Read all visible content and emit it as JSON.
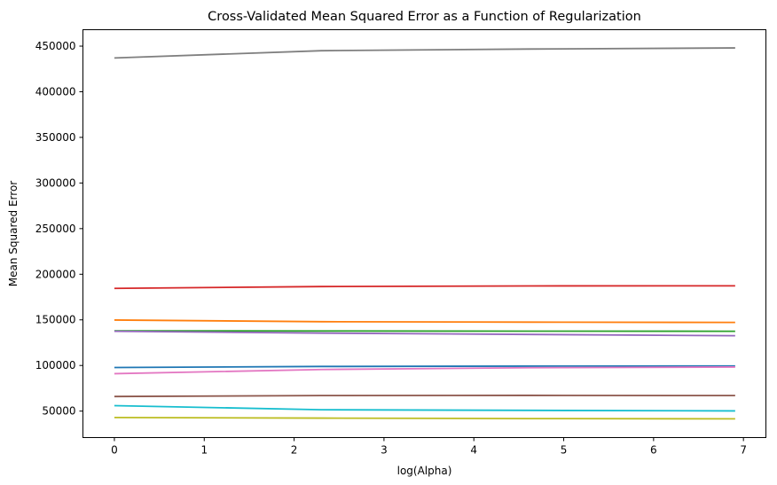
{
  "chart_data": {
    "type": "line",
    "title": "Cross-Validated Mean Squared Error as a Function of Regularization",
    "xlabel": "log(Alpha)",
    "ylabel": "Mean Squared Error",
    "xlim": [
      -0.35,
      7.25
    ],
    "ylim": [
      21000,
      468000
    ],
    "xticks": [
      "0",
      "1",
      "2",
      "3",
      "4",
      "5",
      "6",
      "7"
    ],
    "yticks": [
      "50000",
      "100000",
      "150000",
      "200000",
      "250000",
      "300000",
      "350000",
      "400000",
      "450000"
    ],
    "grid": false,
    "x": [
      0,
      2.303,
      4.605,
      6.908
    ],
    "series": [
      {
        "color": "#1f77b4",
        "values": [
          97800,
          98900,
          99300,
          99500
        ]
      },
      {
        "color": "#ff7f0e",
        "values": [
          149800,
          148000,
          147500,
          147200
        ]
      },
      {
        "color": "#2ca02c",
        "values": [
          138000,
          137800,
          137600,
          137500
        ]
      },
      {
        "color": "#d62728",
        "values": [
          184500,
          186500,
          187200,
          187300
        ]
      },
      {
        "color": "#9467bd",
        "values": [
          137500,
          135500,
          134000,
          132600
        ]
      },
      {
        "color": "#8c564b",
        "values": [
          66000,
          67000,
          67200,
          67000
        ]
      },
      {
        "color": "#e377c2",
        "values": [
          91000,
          95600,
          97500,
          98300
        ]
      },
      {
        "color": "#7f7f7f",
        "values": [
          437000,
          445000,
          446800,
          448000
        ]
      },
      {
        "color": "#bcbd22",
        "values": [
          43000,
          42300,
          41800,
          41500
        ]
      },
      {
        "color": "#17becf",
        "values": [
          56000,
          51500,
          50800,
          50200
        ]
      }
    ]
  }
}
